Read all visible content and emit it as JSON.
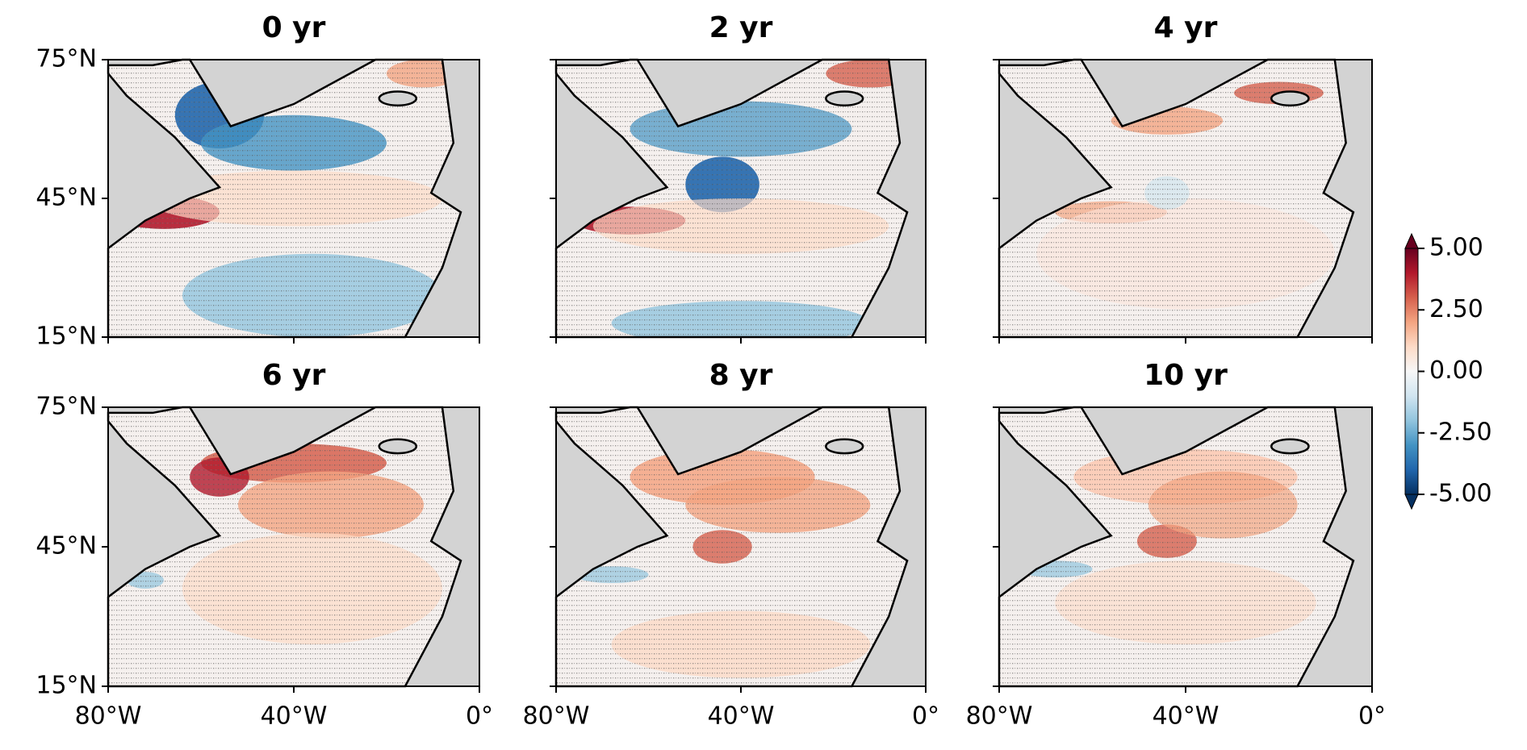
{
  "chart_data": {
    "type": "map",
    "panels": [
      {
        "title": "0 yr"
      },
      {
        "title": "2 yr"
      },
      {
        "title": "4 yr"
      },
      {
        "title": "6 yr"
      },
      {
        "title": "8 yr"
      },
      {
        "title": "10 yr"
      }
    ],
    "xlim": [
      -80,
      0
    ],
    "xticks": [
      {
        "value": -80,
        "label": "80°W"
      },
      {
        "value": -40,
        "label": "40°W"
      },
      {
        "value": 0,
        "label": "0°"
      }
    ],
    "ylim": [
      15,
      75
    ],
    "yticks": [
      {
        "value": 15,
        "label": "15°N"
      },
      {
        "value": 45,
        "label": "45°N"
      },
      {
        "value": 75,
        "label": "75°N"
      }
    ],
    "colorbar": {
      "lim": [
        -5,
        5
      ],
      "ticks": [
        {
          "value": 5,
          "label": "5.00"
        },
        {
          "value": 2.5,
          "label": "2.50"
        },
        {
          "value": 0,
          "label": "0.00"
        },
        {
          "value": -2.5,
          "label": "-2.50"
        },
        {
          "value": -5,
          "label": "-5.00"
        }
      ],
      "colors": [
        "#053061",
        "#2166ac",
        "#4393c3",
        "#92c5de",
        "#d1e5f0",
        "#f7f7f7",
        "#fddbc7",
        "#f4a582",
        "#d6604d",
        "#b2182b",
        "#67001f"
      ]
    }
  }
}
